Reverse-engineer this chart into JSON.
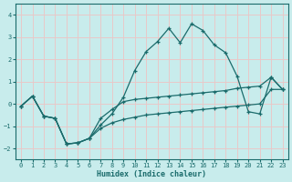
{
  "xlabel": "Humidex (Indice chaleur)",
  "xlim": [
    -0.5,
    23.5
  ],
  "ylim": [
    -2.5,
    4.5
  ],
  "yticks": [
    -2,
    -1,
    0,
    1,
    2,
    3,
    4
  ],
  "xticks": [
    0,
    1,
    2,
    3,
    4,
    5,
    6,
    7,
    8,
    9,
    10,
    11,
    12,
    13,
    14,
    15,
    16,
    17,
    18,
    19,
    20,
    21,
    22,
    23
  ],
  "bg_color": "#c8ecec",
  "line_color": "#1a6b6b",
  "grid_color": "#e8c8c8",
  "line1_x": [
    0,
    1,
    2,
    3,
    4,
    5,
    6,
    7,
    8,
    9,
    10,
    11,
    12,
    13,
    14,
    15,
    16,
    17,
    18,
    19,
    20,
    21,
    22,
    23
  ],
  "line1_y": [
    -0.1,
    0.35,
    -0.55,
    -0.65,
    -1.8,
    -1.75,
    -1.55,
    -0.95,
    -0.45,
    0.3,
    1.5,
    2.35,
    2.8,
    3.4,
    2.75,
    3.6,
    3.3,
    2.65,
    2.3,
    1.25,
    -0.35,
    -0.45,
    1.2,
    0.65
  ],
  "line2_x": [
    0,
    1,
    2,
    3,
    4,
    5,
    6,
    7,
    8,
    9,
    10,
    11,
    12,
    13,
    14,
    15,
    16,
    17,
    18,
    19,
    20,
    21,
    22,
    23
  ],
  "line2_y": [
    -0.1,
    0.35,
    -0.55,
    -0.65,
    -1.8,
    -1.75,
    -1.55,
    -0.65,
    -0.25,
    0.1,
    0.2,
    0.25,
    0.3,
    0.35,
    0.4,
    0.45,
    0.5,
    0.55,
    0.6,
    0.7,
    0.75,
    0.8,
    1.2,
    0.65
  ],
  "line3_x": [
    0,
    1,
    2,
    3,
    4,
    5,
    6,
    7,
    8,
    9,
    10,
    11,
    12,
    13,
    14,
    15,
    16,
    17,
    18,
    19,
    20,
    21,
    22,
    23
  ],
  "line3_y": [
    -0.1,
    0.35,
    -0.55,
    -0.65,
    -1.8,
    -1.75,
    -1.55,
    -1.1,
    -0.85,
    -0.7,
    -0.6,
    -0.5,
    -0.45,
    -0.4,
    -0.35,
    -0.3,
    -0.25,
    -0.2,
    -0.15,
    -0.1,
    -0.05,
    0.0,
    0.65,
    0.65
  ]
}
